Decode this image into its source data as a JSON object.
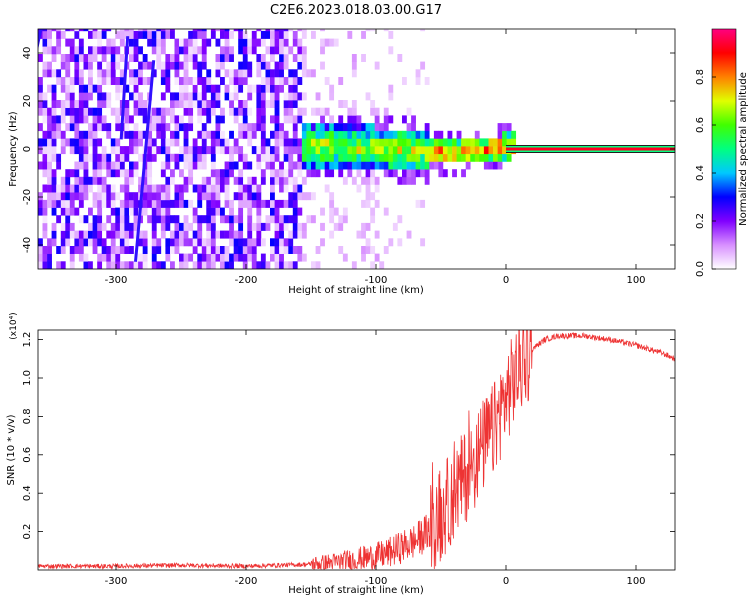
{
  "title": "C2E6.2023.018.03.00.G17",
  "chart_data": [
    {
      "type": "heatmap",
      "xlabel": "Height of straight line (km)",
      "ylabel": "Frequency (Hz)",
      "xlim": [
        -360,
        130
      ],
      "ylim": [
        -50,
        50
      ],
      "x_ticks": [
        -300,
        -200,
        -100,
        0,
        100
      ],
      "y_ticks": [
        -40,
        -20,
        0,
        20,
        40
      ],
      "colorbar": {
        "label": "Normalized spectral amplitude",
        "range": [
          0.0,
          1.0
        ],
        "ticks": [
          "0.0",
          "0.2",
          "0.4",
          "0.6",
          "0.8"
        ],
        "colors": [
          "#ffffff",
          "#d890ff",
          "#8000ff",
          "#0000ff",
          "#00c8ff",
          "#00ff80",
          "#40ff00",
          "#e0ff00",
          "#ff8000",
          "#ff0000",
          "#ff0080"
        ]
      },
      "features": {
        "noise_region_x": [
          -360,
          -160
        ],
        "signal_line": {
          "x_start": 0,
          "x_end": 130,
          "y": 0,
          "amplitude": 1.0
        },
        "streaks": [
          {
            "x_start": -364,
            "y_start": 34,
            "x_end": -357,
            "y_end": 52
          },
          {
            "x_start": -285,
            "y_start": -47,
            "x_end": -271,
            "y_end": 37
          },
          {
            "x_start": -296,
            "y_start": 4,
            "x_end": -291,
            "y_end": 47
          }
        ]
      }
    },
    {
      "type": "line",
      "xlabel": "Height of straight line (km)",
      "ylabel": "SNR (10 * v/v)",
      "y_multiplier": "(x10⁴)",
      "xlim": [
        -360,
        130
      ],
      "ylim": [
        0,
        1.25
      ],
      "x_ticks": [
        -300,
        -200,
        -100,
        0,
        100
      ],
      "y_ticks": [
        "0.2",
        "0.4",
        "0.6",
        "0.8",
        "1.0",
        "1.2"
      ],
      "color": "#ee3333",
      "series": [
        {
          "x": [
            -360,
            -300,
            -250,
            -200,
            -150,
            -130,
            -110,
            -100,
            -90,
            -80,
            -70,
            -60,
            -50,
            -40,
            -30,
            -20,
            -10,
            0,
            10,
            20,
            30,
            40,
            60,
            80,
            100,
            120,
            130
          ],
          "y": [
            0.02,
            0.02,
            0.025,
            0.02,
            0.03,
            0.04,
            0.06,
            0.07,
            0.09,
            0.12,
            0.15,
            0.2,
            0.28,
            0.4,
            0.5,
            0.62,
            0.72,
            0.9,
            1.05,
            1.15,
            1.2,
            1.22,
            1.22,
            1.2,
            1.17,
            1.13,
            1.1
          ]
        }
      ]
    }
  ]
}
